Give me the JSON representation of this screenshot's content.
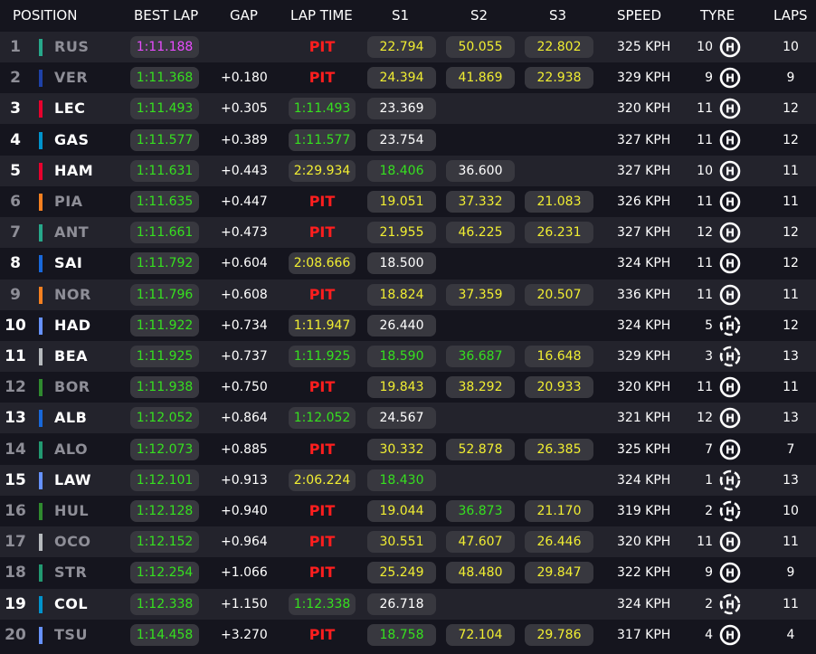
{
  "header": {
    "position": "POSITION",
    "best_lap": "BEST LAP",
    "gap": "GAP",
    "lap_time": "LAP TIME",
    "s1": "S1",
    "s2": "S2",
    "s3": "S3",
    "speed": "SPEED",
    "tyre": "TYRE",
    "laps": "LAPS"
  },
  "colors": {
    "purple": "#e84cff",
    "green": "#36e01f",
    "yellow": "#f1ee32",
    "white": "#ffffff",
    "pit": "#ff1e1e"
  },
  "rows": [
    {
      "pos": "1",
      "driver": "RUS",
      "team": "#27a88a",
      "dim": true,
      "best": "1:11.188",
      "best_c": "purple",
      "gap": "",
      "lap": "PIT",
      "lap_c": "pit",
      "s1": "22.794",
      "s1_c": "yellow",
      "s2": "50.055",
      "s2_c": "yellow",
      "s3": "22.802",
      "s3_c": "yellow",
      "speed": "325 KPH",
      "tyre_n": "10",
      "tyre": "hard",
      "laps": "10"
    },
    {
      "pos": "2",
      "driver": "VER",
      "team": "#1e41a8",
      "dim": true,
      "best": "1:11.368",
      "best_c": "green",
      "gap": "+0.180",
      "lap": "PIT",
      "lap_c": "pit",
      "s1": "24.394",
      "s1_c": "yellow",
      "s2": "41.869",
      "s2_c": "yellow",
      "s3": "22.938",
      "s3_c": "yellow",
      "speed": "329 KPH",
      "tyre_n": "9",
      "tyre": "hard",
      "laps": "9"
    },
    {
      "pos": "3",
      "driver": "LEC",
      "team": "#e8002d",
      "dim": false,
      "best": "1:11.493",
      "best_c": "green",
      "gap": "+0.305",
      "lap": "1:11.493",
      "lap_c": "green",
      "s1": "23.369",
      "s1_c": "white",
      "s2": "",
      "s2_c": "white",
      "s3": "",
      "s3_c": "white",
      "speed": "320 KPH",
      "tyre_n": "11",
      "tyre": "hard",
      "laps": "12"
    },
    {
      "pos": "4",
      "driver": "GAS",
      "team": "#0093cc",
      "dim": false,
      "best": "1:11.577",
      "best_c": "green",
      "gap": "+0.389",
      "lap": "1:11.577",
      "lap_c": "green",
      "s1": "23.754",
      "s1_c": "white",
      "s2": "",
      "s2_c": "white",
      "s3": "",
      "s3_c": "white",
      "speed": "327 KPH",
      "tyre_n": "11",
      "tyre": "hard",
      "laps": "12"
    },
    {
      "pos": "5",
      "driver": "HAM",
      "team": "#e8002d",
      "dim": false,
      "best": "1:11.631",
      "best_c": "green",
      "gap": "+0.443",
      "lap": "2:29.934",
      "lap_c": "yellow",
      "s1": "18.406",
      "s1_c": "green",
      "s2": "36.600",
      "s2_c": "white",
      "s3": "",
      "s3_c": "white",
      "speed": "327 KPH",
      "tyre_n": "10",
      "tyre": "hard",
      "laps": "11"
    },
    {
      "pos": "6",
      "driver": "PIA",
      "team": "#f58020",
      "dim": true,
      "best": "1:11.635",
      "best_c": "green",
      "gap": "+0.447",
      "lap": "PIT",
      "lap_c": "pit",
      "s1": "19.051",
      "s1_c": "yellow",
      "s2": "37.332",
      "s2_c": "yellow",
      "s3": "21.083",
      "s3_c": "yellow",
      "speed": "326 KPH",
      "tyre_n": "11",
      "tyre": "hard",
      "laps": "11"
    },
    {
      "pos": "7",
      "driver": "ANT",
      "team": "#27a88a",
      "dim": true,
      "best": "1:11.661",
      "best_c": "green",
      "gap": "+0.473",
      "lap": "PIT",
      "lap_c": "pit",
      "s1": "21.955",
      "s1_c": "yellow",
      "s2": "46.225",
      "s2_c": "yellow",
      "s3": "26.231",
      "s3_c": "yellow",
      "speed": "327 KPH",
      "tyre_n": "12",
      "tyre": "hard",
      "laps": "12"
    },
    {
      "pos": "8",
      "driver": "SAI",
      "team": "#1868db",
      "dim": false,
      "best": "1:11.792",
      "best_c": "green",
      "gap": "+0.604",
      "lap": "2:08.666",
      "lap_c": "yellow",
      "s1": "18.500",
      "s1_c": "white",
      "s2": "",
      "s2_c": "white",
      "s3": "",
      "s3_c": "white",
      "speed": "324 KPH",
      "tyre_n": "11",
      "tyre": "hard",
      "laps": "12"
    },
    {
      "pos": "9",
      "driver": "NOR",
      "team": "#f58020",
      "dim": true,
      "best": "1:11.796",
      "best_c": "green",
      "gap": "+0.608",
      "lap": "PIT",
      "lap_c": "pit",
      "s1": "18.824",
      "s1_c": "yellow",
      "s2": "37.359",
      "s2_c": "yellow",
      "s3": "20.507",
      "s3_c": "yellow",
      "speed": "336 KPH",
      "tyre_n": "11",
      "tyre": "hard",
      "laps": "11"
    },
    {
      "pos": "10",
      "driver": "HAD",
      "team": "#6692ff",
      "dim": false,
      "best": "1:11.922",
      "best_c": "green",
      "gap": "+0.734",
      "lap": "1:11.947",
      "lap_c": "yellow",
      "s1": "26.440",
      "s1_c": "white",
      "s2": "",
      "s2_c": "white",
      "s3": "",
      "s3_c": "white",
      "speed": "324 KPH",
      "tyre_n": "5",
      "tyre": "hard-new",
      "laps": "12"
    },
    {
      "pos": "11",
      "driver": "BEA",
      "team": "#b6babd",
      "dim": false,
      "best": "1:11.925",
      "best_c": "green",
      "gap": "+0.737",
      "lap": "1:11.925",
      "lap_c": "green",
      "s1": "18.590",
      "s1_c": "green",
      "s2": "36.687",
      "s2_c": "green",
      "s3": "16.648",
      "s3_c": "yellow",
      "speed": "329 KPH",
      "tyre_n": "3",
      "tyre": "hard-new",
      "laps": "13"
    },
    {
      "pos": "12",
      "driver": "BOR",
      "team": "#2f8a2f",
      "dim": true,
      "best": "1:11.938",
      "best_c": "green",
      "gap": "+0.750",
      "lap": "PIT",
      "lap_c": "pit",
      "s1": "19.843",
      "s1_c": "yellow",
      "s2": "38.292",
      "s2_c": "yellow",
      "s3": "20.933",
      "s3_c": "yellow",
      "speed": "320 KPH",
      "tyre_n": "11",
      "tyre": "hard",
      "laps": "11"
    },
    {
      "pos": "13",
      "driver": "ALB",
      "team": "#1868db",
      "dim": false,
      "best": "1:12.052",
      "best_c": "green",
      "gap": "+0.864",
      "lap": "1:12.052",
      "lap_c": "green",
      "s1": "24.567",
      "s1_c": "white",
      "s2": "",
      "s2_c": "white",
      "s3": "",
      "s3_c": "white",
      "speed": "321 KPH",
      "tyre_n": "12",
      "tyre": "hard",
      "laps": "13"
    },
    {
      "pos": "14",
      "driver": "ALO",
      "team": "#229971",
      "dim": true,
      "best": "1:12.073",
      "best_c": "green",
      "gap": "+0.885",
      "lap": "PIT",
      "lap_c": "pit",
      "s1": "30.332",
      "s1_c": "yellow",
      "s2": "52.878",
      "s2_c": "yellow",
      "s3": "26.385",
      "s3_c": "yellow",
      "speed": "325 KPH",
      "tyre_n": "7",
      "tyre": "hard",
      "laps": "7"
    },
    {
      "pos": "15",
      "driver": "LAW",
      "team": "#6692ff",
      "dim": false,
      "best": "1:12.101",
      "best_c": "green",
      "gap": "+0.913",
      "lap": "2:06.224",
      "lap_c": "yellow",
      "s1": "18.430",
      "s1_c": "green",
      "s2": "",
      "s2_c": "white",
      "s3": "",
      "s3_c": "white",
      "speed": "324 KPH",
      "tyre_n": "1",
      "tyre": "hard-new",
      "laps": "13"
    },
    {
      "pos": "16",
      "driver": "HUL",
      "team": "#2f8a2f",
      "dim": true,
      "best": "1:12.128",
      "best_c": "green",
      "gap": "+0.940",
      "lap": "PIT",
      "lap_c": "pit",
      "s1": "19.044",
      "s1_c": "yellow",
      "s2": "36.873",
      "s2_c": "green",
      "s3": "21.170",
      "s3_c": "yellow",
      "speed": "319 KPH",
      "tyre_n": "2",
      "tyre": "hard-new",
      "laps": "10"
    },
    {
      "pos": "17",
      "driver": "OCO",
      "team": "#b6babd",
      "dim": true,
      "best": "1:12.152",
      "best_c": "green",
      "gap": "+0.964",
      "lap": "PIT",
      "lap_c": "pit",
      "s1": "30.551",
      "s1_c": "yellow",
      "s2": "47.607",
      "s2_c": "yellow",
      "s3": "26.446",
      "s3_c": "yellow",
      "speed": "320 KPH",
      "tyre_n": "11",
      "tyre": "hard",
      "laps": "11"
    },
    {
      "pos": "18",
      "driver": "STR",
      "team": "#229971",
      "dim": true,
      "best": "1:12.254",
      "best_c": "green",
      "gap": "+1.066",
      "lap": "PIT",
      "lap_c": "pit",
      "s1": "25.249",
      "s1_c": "yellow",
      "s2": "48.480",
      "s2_c": "yellow",
      "s3": "29.847",
      "s3_c": "yellow",
      "speed": "322 KPH",
      "tyre_n": "9",
      "tyre": "hard",
      "laps": "9"
    },
    {
      "pos": "19",
      "driver": "COL",
      "team": "#0093cc",
      "dim": false,
      "best": "1:12.338",
      "best_c": "green",
      "gap": "+1.150",
      "lap": "1:12.338",
      "lap_c": "green",
      "s1": "26.718",
      "s1_c": "white",
      "s2": "",
      "s2_c": "white",
      "s3": "",
      "s3_c": "white",
      "speed": "324 KPH",
      "tyre_n": "2",
      "tyre": "hard-new",
      "laps": "11"
    },
    {
      "pos": "20",
      "driver": "TSU",
      "team": "#6692ff",
      "dim": true,
      "best": "1:14.458",
      "best_c": "green",
      "gap": "+3.270",
      "lap": "PIT",
      "lap_c": "pit",
      "s1": "18.758",
      "s1_c": "green",
      "s2": "72.104",
      "s2_c": "yellow",
      "s3": "29.786",
      "s3_c": "yellow",
      "speed": "317 KPH",
      "tyre_n": "4",
      "tyre": "hard",
      "laps": "4"
    }
  ]
}
